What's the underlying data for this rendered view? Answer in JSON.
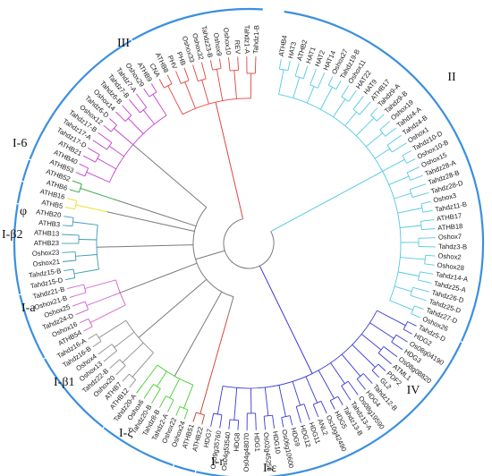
{
  "figure": {
    "clade_labels": {
      "III": "III",
      "II": "II",
      "IV": "IV",
      "I_delta": "I-6",
      "I_phi": "φ",
      "I_beta2": "I-β2",
      "I_a": "I-a",
      "I_beta1": "I-β1",
      "I_xi": "I-ξ",
      "I_r": "I-r",
      "I_epsilon": "I-ε"
    },
    "colors": {
      "II": "#55c9e3",
      "III": "#e2443c",
      "IV": "#3a3ad6",
      "I_delta": "#c23fce",
      "I_phi": "#22a33a",
      "I_beta2": "#e8e02a",
      "I_a": "#3b9bb0",
      "I_beta1": "#d05ec8",
      "I_xi": "#8c8c8c",
      "I_r": "#45cf2e",
      "I_epsilon": "#c0392b",
      "backbone": "#7a7a7a",
      "arc": "#3b8fe0"
    },
    "groups": [
      {
        "id": "II",
        "color_key": "II",
        "leaves": [
          "ATHB4",
          "HAT3",
          "ATHB2",
          "HAT1",
          "HAT2",
          "HAT14",
          "Oshox27",
          "Tahdz19-B",
          "Oshox11",
          "HAT22",
          "HAT9",
          "ATHB17",
          "Tahdz9-A",
          "Tahdz9-B",
          "Oshox19",
          "Tahdz4-A",
          "Tahdz4-B",
          "Oshox1",
          "Tahdz10-D",
          "Oshox10-B",
          "Oshox15",
          "Tahdz28-A",
          "Tahdz28-B",
          "Tahdz28-D",
          "Oshox3",
          "Tahdz11-B",
          "ATHB17",
          "ATHB18",
          "Oshox7",
          "Tahdz3-B",
          "Oshox2",
          "Oshox28",
          "Tahdz14-A",
          "Tahdz25-A",
          "Tahdz26-D",
          "Tahdz25-D",
          "Tahdz27-D",
          "Oshox26"
        ]
      },
      {
        "id": "IV",
        "color_key": "IV",
        "leaves": [
          "Tahdz5-D",
          "HDG2",
          "Os08g04190",
          "HDG3",
          "Os08g08820",
          "ATML1",
          "PDF2",
          "GL2",
          "Tahdz12-B",
          "HDG4",
          "Os08g19590",
          "Tahdz13-A",
          "Tahdz13-B",
          "HDG5",
          "Os10g42490",
          "ANL2",
          "HDG11",
          "HDG12",
          "HDG9",
          "Os06g10600",
          "HDG10",
          "Os02g45250",
          "HDG1",
          "Os04g48070",
          "HDG8",
          "Os04g53540",
          "Os09g35760",
          "HDG7"
        ]
      },
      {
        "id": "I_epsilon",
        "color_key": "I_epsilon",
        "leaves": [
          "ATHB22",
          "ATHB51"
        ]
      },
      {
        "id": "I_r",
        "color_key": "I_r",
        "leaves": [
          "Oshox24",
          "Oshox22",
          "Tahdz2-A",
          "Tahdz8-B",
          "Tahdz20-B",
          "Oshox6",
          "Tahdz20-A"
        ]
      },
      {
        "id": "I_xi",
        "color_key": "I_xi",
        "leaves": [
          "ATHB12",
          "ATHB7",
          "Oshox20",
          "Tahdz22-B",
          "Oshox13",
          "Oshox4",
          "Tahdz16-B",
          "Tahdz16-A"
        ]
      },
      {
        "id": "I_beta1",
        "color_key": "I_beta1",
        "leaves": [
          "ATHB54",
          "Oshox16",
          "Tahdz24-D",
          "Oshox25",
          "Oshox21-B",
          "Tahdz21-B"
        ]
      },
      {
        "id": "I_a",
        "color_key": "I_a",
        "leaves": [
          "Tahdz15-D",
          "Tahdz15-B",
          "Oshox21",
          "Oshox23",
          "ATHB23",
          "ATHB13",
          "ATHB3",
          "ATHB20"
        ]
      },
      {
        "id": "I_beta2",
        "color_key": "I_beta2",
        "leaves": [
          "ATHB5",
          "ATHB16"
        ]
      },
      {
        "id": "I_phi",
        "color_key": "I_phi",
        "leaves": [
          "ATHB6",
          "ATHB52"
        ]
      },
      {
        "id": "I_delta",
        "color_key": "I_delta",
        "leaves": [
          "ATHB53",
          "ATHB40",
          "ATHB21",
          "Tahdz17-D",
          "Tahdz17-A",
          "Tahdz17-B",
          "Oshox12",
          "Tahdz6-D",
          "Oshox14",
          "Tahdz6-B",
          "Tahdz7-B",
          "Tahdz7-A",
          "Oshox29",
          "ATHB9"
        ]
      },
      {
        "id": "III",
        "color_key": "III",
        "leaves": [
          "CNA",
          "ATHB8",
          "PHV",
          "PHB",
          "Oshox33",
          "Oshox32",
          "Tahdz23-B",
          "Oshox9",
          "Oshox10",
          "REV",
          "Tahdz1-A",
          "Tahdz1-B"
        ]
      }
    ]
  }
}
